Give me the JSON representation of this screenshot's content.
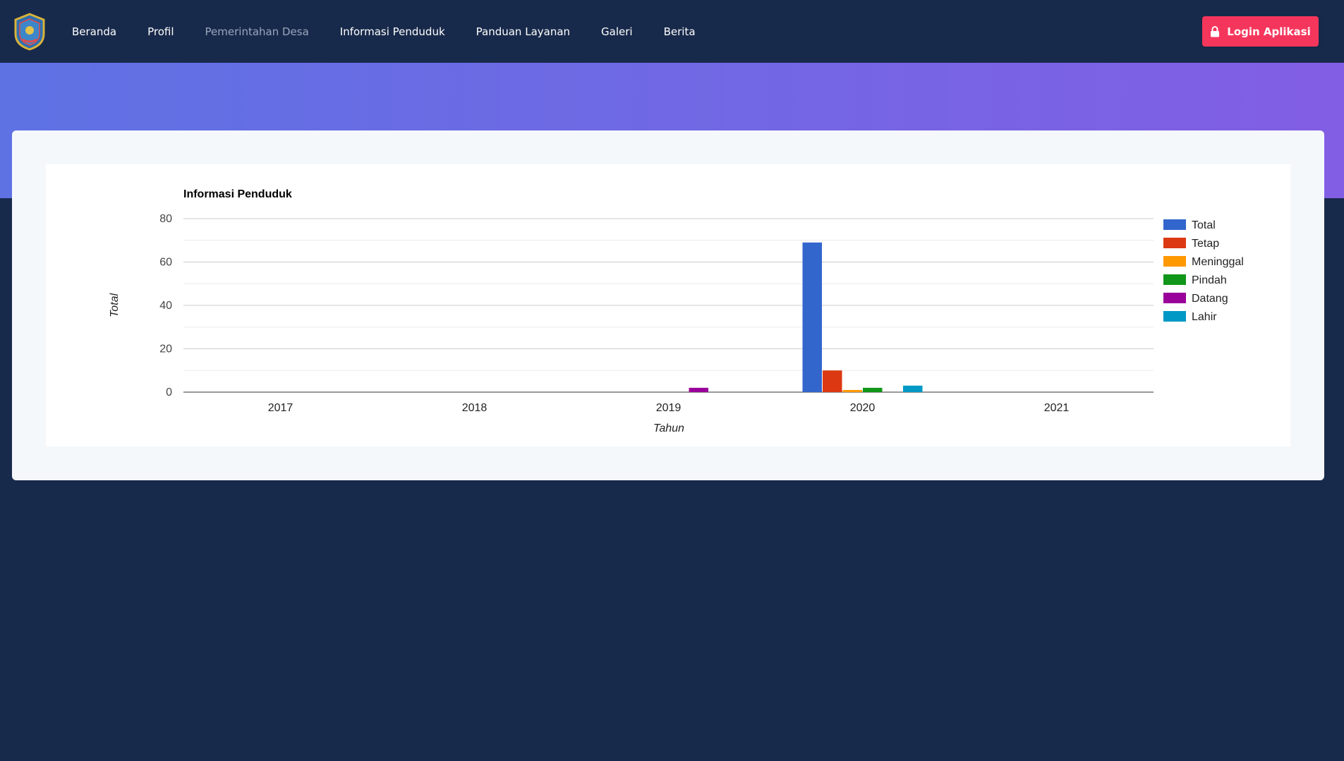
{
  "nav": {
    "logo_alt": "Logo Desa",
    "items": [
      {
        "label": "Beranda"
      },
      {
        "label": "Profil"
      },
      {
        "label": "Pemerintahan Desa"
      },
      {
        "label": "Informasi Penduduk"
      },
      {
        "label": "Panduan Layanan"
      },
      {
        "label": "Galeri"
      },
      {
        "label": "Berita"
      }
    ],
    "login_label": "Login Aplikasi",
    "login_icon": "lock-icon"
  },
  "colors": {
    "nav_bg": "#182a4b",
    "hero_start": "#5e72e4",
    "hero_end": "#825ee4",
    "login_bg": "#f5365c"
  },
  "chart_data": {
    "type": "bar",
    "title": "Informasi Penduduk",
    "xlabel": "Tahun",
    "ylabel": "Total",
    "ylim": [
      0,
      80
    ],
    "yticks": [
      0,
      20,
      40,
      60,
      80
    ],
    "grid": true,
    "legend_position": "right",
    "categories": [
      "2017",
      "2018",
      "2019",
      "2020",
      "2021"
    ],
    "series": [
      {
        "name": "Total",
        "color": "#3366cc",
        "values": [
          0,
          0,
          0,
          69,
          0
        ]
      },
      {
        "name": "Tetap",
        "color": "#dc3912",
        "values": [
          0,
          0,
          0,
          10,
          0
        ]
      },
      {
        "name": "Meninggal",
        "color": "#ff9900",
        "values": [
          0,
          0,
          0,
          1,
          0
        ]
      },
      {
        "name": "Pindah",
        "color": "#109618",
        "values": [
          0,
          0,
          0,
          2,
          0
        ]
      },
      {
        "name": "Datang",
        "color": "#990099",
        "values": [
          0,
          0,
          2,
          0,
          0
        ]
      },
      {
        "name": "Lahir",
        "color": "#0099c6",
        "values": [
          0,
          0,
          0,
          3,
          0
        ]
      }
    ]
  }
}
